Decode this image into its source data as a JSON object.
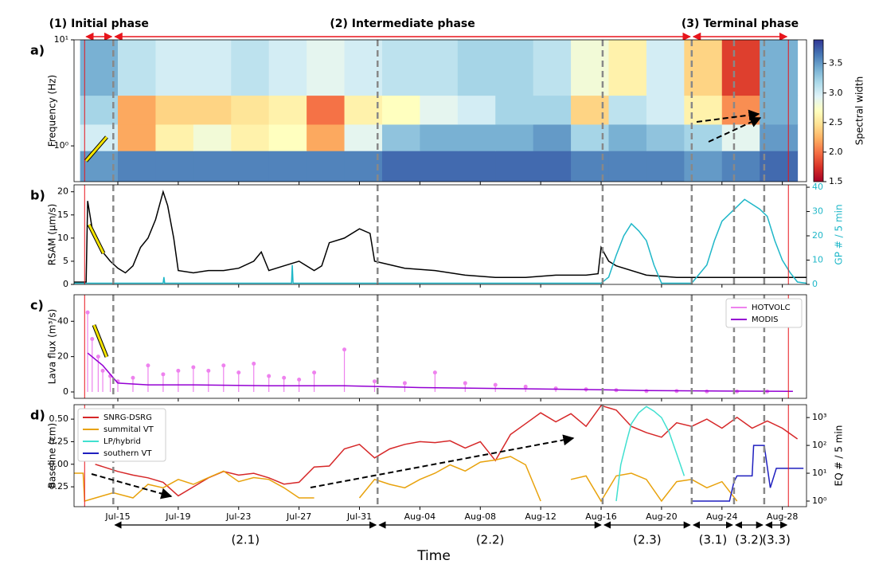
{
  "time_axis": {
    "xlim": [
      12.1,
      60.6
    ],
    "xlabel": "Time",
    "xticks": [
      {
        "value": 15,
        "label": "Jul-15"
      },
      {
        "value": 19,
        "label": "Jul-19"
      },
      {
        "value": 23,
        "label": "Jul-23"
      },
      {
        "value": 27,
        "label": "Jul-27"
      },
      {
        "value": 31,
        "label": "Jul-31"
      },
      {
        "value": 35,
        "label": "Aug-04"
      },
      {
        "value": 39,
        "label": "Aug-08"
      },
      {
        "value": 43,
        "label": "Aug-12"
      },
      {
        "value": 47,
        "label": "Aug-16"
      },
      {
        "value": 51,
        "label": "Aug-20"
      },
      {
        "value": 55,
        "label": "Aug-24"
      },
      {
        "value": 59,
        "label": "Aug-28"
      }
    ]
  },
  "phases": [
    {
      "label": "(1) Initial phase",
      "start": 12.8,
      "end": 14.7
    },
    {
      "label": "(2) Intermediate phase",
      "start": 14.7,
      "end": 53.0
    },
    {
      "label": "(3) Terminal phase",
      "start": 53.0,
      "end": 59.4
    }
  ],
  "subphases": [
    {
      "label": "(2.1)",
      "start": 14.7,
      "end": 32.2
    },
    {
      "label": "(2.2)",
      "start": 32.2,
      "end": 47.1
    },
    {
      "label": "(2.3)",
      "start": 47.1,
      "end": 53.0
    },
    {
      "label": "(3.1)",
      "start": 53.0,
      "end": 55.8
    },
    {
      "label": "(3.2)",
      "start": 55.8,
      "end": 57.8
    },
    {
      "label": "(3.3)",
      "start": 57.8,
      "end": 59.4
    }
  ],
  "chart_data": [
    {
      "type": "heatmap",
      "panel": "a)",
      "ylabel": "Frequency (Hz)",
      "ylog": true,
      "ylim": [
        0.46,
        10
      ],
      "yticks": [
        {
          "value": 1,
          "label": "10⁰"
        },
        {
          "value": 10,
          "label": "10¹"
        }
      ],
      "xbins": [
        12.5,
        15,
        17.5,
        20,
        22.5,
        25,
        27.5,
        30,
        32.5,
        35,
        37.5,
        40,
        42.5,
        45,
        47.5,
        50,
        52.5,
        55,
        57.5,
        60
      ],
      "ybins": [
        0.46,
        0.9,
        1.6,
        3,
        10
      ],
      "z": [
        [
          3.5,
          3.6,
          3.6,
          3.6,
          3.6,
          3.6,
          3.6,
          3.6,
          3.7,
          3.7,
          3.7,
          3.7,
          3.7,
          3.6,
          3.6,
          3.6,
          3.5,
          3.6,
          3.7
        ],
        [
          3.0,
          2.2,
          2.6,
          2.8,
          2.6,
          2.7,
          2.2,
          2.9,
          3.3,
          3.4,
          3.4,
          3.4,
          3.5,
          3.2,
          3.4,
          3.3,
          3.2,
          2.9,
          3.5
        ],
        [
          3.2,
          2.2,
          2.4,
          2.4,
          2.5,
          2.6,
          2.0,
          2.6,
          2.7,
          2.9,
          3.0,
          3.2,
          3.2,
          2.4,
          3.1,
          3.0,
          2.6,
          2.1,
          3.4
        ],
        [
          3.4,
          3.1,
          3.0,
          3.0,
          3.1,
          3.0,
          2.9,
          3.0,
          3.1,
          3.1,
          3.2,
          3.2,
          3.1,
          2.8,
          2.6,
          3.0,
          2.4,
          1.8,
          3.4
        ]
      ],
      "clim": [
        1.5,
        3.9
      ],
      "colorbar_label": "Spectral width",
      "colorbar_ticks": [
        1.5,
        {
          "value": 2,
          "label": "2.0"
        },
        2.5,
        {
          "value": 3,
          "label": "3.0"
        },
        3.5
      ]
    },
    {
      "type": "line",
      "panel": "b)",
      "ylabel": "RSAM (µm/s)",
      "ylim": [
        0,
        21.5
      ],
      "yticks": [
        0,
        5,
        10,
        15,
        20
      ],
      "y2label": "GP # / 5 min",
      "y2color": "#1fb7c8",
      "y2lim": [
        0,
        41
      ],
      "y2ticks": [
        0,
        10,
        20,
        30,
        40
      ],
      "series": [
        {
          "name": "RSAM",
          "color": "#000000",
          "x": [
            12.1,
            12.9,
            13.0,
            13.3,
            14,
            14.5,
            15,
            15.5,
            16,
            16.5,
            17,
            17.5,
            18,
            18.3,
            18.7,
            19,
            20,
            21,
            22,
            23,
            24,
            24.5,
            25,
            26,
            27,
            28,
            28.5,
            29,
            30,
            31,
            31.7,
            32,
            34,
            36,
            38,
            40,
            42,
            44,
            46,
            46.8,
            47,
            47.5,
            48,
            50,
            52,
            54,
            56,
            58,
            59,
            60.6
          ],
          "values": [
            0.5,
            0.5,
            18,
            12,
            7,
            5,
            3.5,
            2.5,
            4,
            8,
            10,
            14,
            20,
            17,
            10,
            3,
            2.5,
            3,
            3,
            3.5,
            5,
            7,
            3,
            4,
            5,
            3,
            4,
            9,
            10,
            12,
            11,
            5,
            3.5,
            3,
            2,
            1.5,
            1.5,
            2,
            2,
            2.3,
            8,
            5,
            4,
            2,
            1.5,
            1.5,
            1.5,
            1.5,
            1.5,
            1.5
          ]
        },
        {
          "name": "GP",
          "color": "#1fb7c8",
          "axis": "y2",
          "x": [
            12.1,
            18.0,
            18.05,
            18.1,
            26.5,
            26.55,
            26.6,
            47,
            47.5,
            48,
            48.5,
            49,
            49.5,
            50,
            50.5,
            51,
            53,
            54,
            54.5,
            55,
            56,
            56.5,
            57,
            57.5,
            58,
            58.5,
            59,
            59.5,
            60,
            60.6
          ],
          "values": [
            0.5,
            0.5,
            3,
            0.5,
            0.5,
            8,
            0.5,
            0.5,
            3,
            12,
            20,
            25,
            22,
            18,
            8,
            0.5,
            0.5,
            8,
            18,
            26,
            32,
            35,
            33,
            31,
            28,
            18,
            10,
            5,
            1,
            0.5
          ]
        }
      ]
    },
    {
      "type": "line",
      "panel": "c)",
      "ylabel": "Lava flux (m³/s)",
      "ylim": [
        -3.6,
        55
      ],
      "yticks": [
        0,
        20,
        40
      ],
      "legend": "upper right",
      "series": [
        {
          "name": "HOTVOLC",
          "color": "#ee82ee",
          "marker": "stem",
          "x": [
            13,
            13.3,
            13.7,
            14,
            14.5,
            15,
            16,
            17,
            18,
            19,
            20,
            21,
            22,
            23,
            24,
            25,
            26,
            27,
            28,
            30,
            32,
            34,
            36,
            38,
            40,
            42,
            44,
            46,
            48,
            50,
            52,
            54,
            56,
            58
          ],
          "values": [
            45,
            30,
            20,
            12,
            9,
            6,
            8,
            15,
            10,
            12,
            14,
            12,
            15,
            11,
            16,
            9,
            8,
            7,
            11,
            24,
            6,
            5,
            11,
            5,
            4,
            3,
            2,
            1.5,
            1,
            0.5,
            0.5,
            0.3,
            0.3,
            0.3
          ]
        },
        {
          "name": "MODIS",
          "color": "#9400d3",
          "x": [
            13,
            14,
            15,
            17,
            20,
            25,
            30,
            35,
            40,
            45,
            50,
            55,
            59.7
          ],
          "values": [
            22,
            15,
            5,
            4,
            4,
            3.5,
            3.5,
            2.5,
            2,
            1.5,
            0.8,
            0.5,
            0.3
          ]
        }
      ]
    },
    {
      "type": "line",
      "panel": "d)",
      "ylabel": "Baseline (cm)",
      "ylim": [
        -0.47,
        0.66
      ],
      "yticks": [
        {
          "value": 0.5,
          "label": "0.50"
        },
        0.25,
        {
          "value": 0,
          "label": "0.00"
        },
        {
          "value": -0.25,
          "label": "0.25"
        }
      ],
      "y2label": "EQ # / 5 min",
      "y2log": true,
      "y2lim": [
        0.63,
        2900
      ],
      "y2ticks": [
        {
          "value": 1,
          "label": "10⁰"
        },
        {
          "value": 10,
          "label": "10¹"
        },
        {
          "value": 100,
          "label": "10²"
        },
        {
          "value": 1000,
          "label": "10³"
        }
      ],
      "legend": "upper left",
      "series": [
        {
          "name": "SNRG-DSRG",
          "color": "#d62728",
          "x": [
            13.5,
            15,
            16,
            17,
            18,
            19,
            20,
            21,
            22,
            23,
            24,
            25,
            26,
            27,
            28,
            29,
            30,
            31,
            32,
            33,
            34,
            35,
            36,
            37,
            38,
            39,
            40,
            41,
            42,
            43,
            44,
            45,
            46,
            47,
            48,
            49,
            50,
            51,
            52,
            53,
            54,
            55,
            56,
            57,
            58,
            59,
            60
          ],
          "values": [
            0.0,
            -0.08,
            -0.12,
            -0.15,
            -0.2,
            -0.35,
            -0.25,
            -0.15,
            -0.08,
            -0.12,
            -0.1,
            -0.15,
            -0.22,
            -0.2,
            -0.03,
            -0.02,
            0.17,
            0.22,
            0.07,
            0.17,
            0.22,
            0.25,
            0.24,
            0.26,
            0.18,
            0.25,
            0.04,
            0.33,
            0.45,
            0.57,
            0.47,
            0.56,
            0.42,
            0.65,
            0.6,
            0.42,
            0.35,
            0.3,
            0.46,
            0.42,
            0.5,
            0.4,
            0.52,
            0.4,
            0.48,
            0.4,
            0.28
          ]
        },
        {
          "name": "summital VT",
          "color": "#e8a20c",
          "axis": "y2",
          "x": [
            12.1,
            12.7,
            12.8,
            14.7,
            16,
            17,
            18,
            19,
            20,
            21,
            22,
            23,
            24,
            25,
            26,
            27,
            28,
            30,
            31,
            32,
            33,
            34,
            35,
            36,
            37,
            38,
            39,
            40,
            41,
            42,
            43,
            44,
            45,
            46,
            47,
            48,
            49,
            50,
            51,
            52,
            53,
            54,
            55,
            56
          ],
          "values": [
            10,
            10,
            1,
            2,
            1.3,
            4,
            3,
            6,
            4,
            7,
            12,
            5,
            7,
            6,
            3,
            1.3,
            1.3,
            null,
            1.3,
            6,
            4,
            3,
            6,
            10,
            20,
            12,
            25,
            30,
            40,
            20,
            1,
            null,
            6,
            8,
            1,
            8,
            10,
            6,
            1,
            5,
            6,
            3,
            5,
            1
          ]
        },
        {
          "name": "LP/hybrid",
          "color": "#40e0d0",
          "axis": "y2",
          "x": [
            48,
            48.3,
            48.7,
            49,
            49.5,
            50,
            50.5,
            51,
            51.5,
            52,
            52.5
          ],
          "values": [
            1,
            20,
            150,
            600,
            1500,
            2500,
            1700,
            1000,
            300,
            50,
            8
          ]
        },
        {
          "name": "southern VT",
          "color": "#1f1fbf",
          "axis": "y2",
          "x": [
            53,
            54,
            54.5,
            55.5,
            55.8,
            56,
            57,
            57.1,
            57.8,
            58.2,
            58.6,
            59,
            59.6,
            60.4
          ],
          "values": [
            1,
            1,
            1,
            1,
            5,
            8,
            8,
            100,
            100,
            3,
            15,
            15,
            15,
            15
          ]
        }
      ]
    }
  ]
}
